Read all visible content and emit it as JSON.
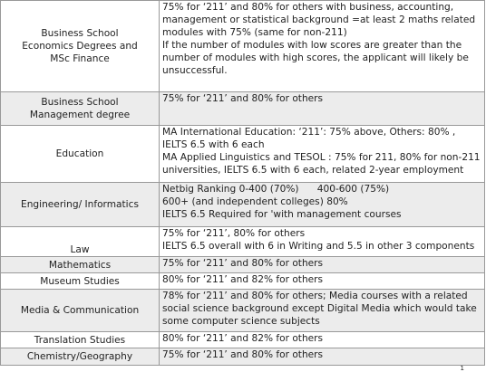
{
  "table": {
    "rows": [
      {
        "subject": [
          "Business School",
          "Economics Degrees and",
          "MSc Finance"
        ],
        "requirement": [
          "75% for ‘211’ and 80% for others with business, accounting, management or statistical background =at least 2 maths related modules with 75% (same for non-211)",
          "If the number of modules with low scores are greater than the number of modules with high scores, the applicant will likely be unsuccessful."
        ]
      },
      {
        "subject": [
          "Business School",
          "Management degree"
        ],
        "requirement": [
          "75% for ‘211’ and 80% for others"
        ]
      },
      {
        "subject": [
          "Education"
        ],
        "requirement": [
          "MA International Education: ‘211’: 75% above, Others: 80% , IELTS 6.5 with 6 each",
          "MA Applied Linguistics and TESOL : 75% for 211, 80% for non-211 universities, IELTS 6.5 with 6 each, related 2-year employment"
        ]
      },
      {
        "subject": [
          "Engineering/ Informatics"
        ],
        "requirement": [
          "Netbig Ranking 0-400 (70%)      400-600 (75%)",
          "600+ (and independent colleges) 80%",
          "IELTS 6.5 Required for 'with management courses"
        ]
      },
      {
        "subject": [
          "Law"
        ],
        "requirement": [
          "75% for ‘211’, 80% for others",
          "IELTS 6.5 overall with 6 in Writing and 5.5 in other 3 components"
        ]
      },
      {
        "subject": [
          "Mathematics"
        ],
        "requirement": [
          "75% for ‘211’ and 80% for others"
        ]
      },
      {
        "subject": [
          "Museum Studies"
        ],
        "requirement": [
          "80% for ‘211’ and 82% for others"
        ]
      },
      {
        "subject": [
          "Media & Communication"
        ],
        "requirement": [
          "78% for ‘211’ and 80% for others; Media courses with a related social science background except Digital Media which would take some computer science subjects"
        ]
      },
      {
        "subject": [
          "Translation Studies"
        ],
        "requirement": [
          "80% for ‘211’ and 82% for others"
        ]
      },
      {
        "subject": [
          "Chemistry/Geography"
        ],
        "requirement": [
          "75% for ‘211’ and 80% for others"
        ]
      }
    ]
  },
  "page_number": "1"
}
